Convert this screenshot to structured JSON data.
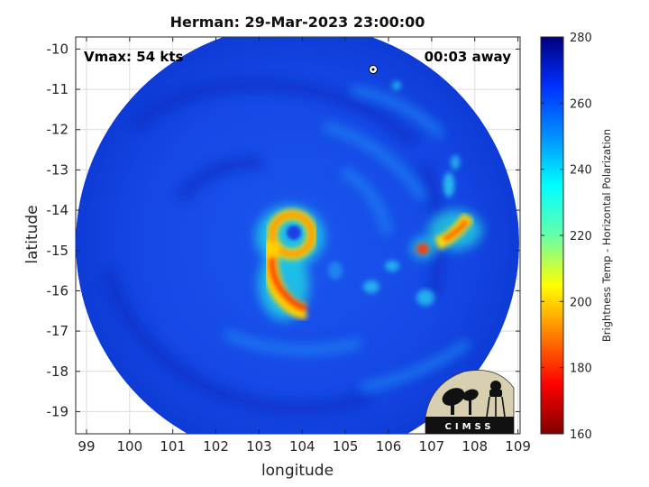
{
  "chart_data": {
    "type": "heatmap",
    "title": "Herman: 29-Mar-2023 23:00:00",
    "xlabel": "longitude",
    "ylabel": "latitude",
    "xlim": [
      98.75,
      109.05
    ],
    "ylim": [
      -19.55,
      -9.7
    ],
    "x_ticks": [
      99,
      100,
      101,
      102,
      103,
      104,
      105,
      106,
      107,
      108,
      109
    ],
    "y_ticks": [
      -10,
      -11,
      -12,
      -13,
      -14,
      -15,
      -16,
      -17,
      -18,
      -19
    ],
    "grid": true,
    "annotations": {
      "vmax": "Vmax: 54 kts",
      "time_offset": "00:03 away"
    },
    "storm_center": {
      "lon": 104.0,
      "lat": -14.9
    },
    "colorbar": {
      "label": "Brightness Temp - Horizontal Polarization",
      "range": [
        160,
        280
      ],
      "ticks": [
        160,
        180,
        200,
        220,
        240,
        260,
        280
      ],
      "colormap": [
        "#7f0000",
        "#ff0000",
        "#ffff00",
        "#00ffff",
        "#0064ff",
        "#00007f"
      ]
    },
    "features": [
      {
        "name": "eyewall",
        "lon": 104.0,
        "lat": -14.9,
        "temp": 195
      },
      {
        "name": "inner-band",
        "lon": 103.8,
        "lat": -16.0,
        "temp": 180
      },
      {
        "name": "outer-band-east",
        "lon": 107.7,
        "lat": -14.5,
        "temp": 178
      },
      {
        "name": "cell-east",
        "lon": 106.8,
        "lat": -14.9,
        "temp": 185
      }
    ]
  },
  "logo": {
    "text": "CIMSS"
  }
}
